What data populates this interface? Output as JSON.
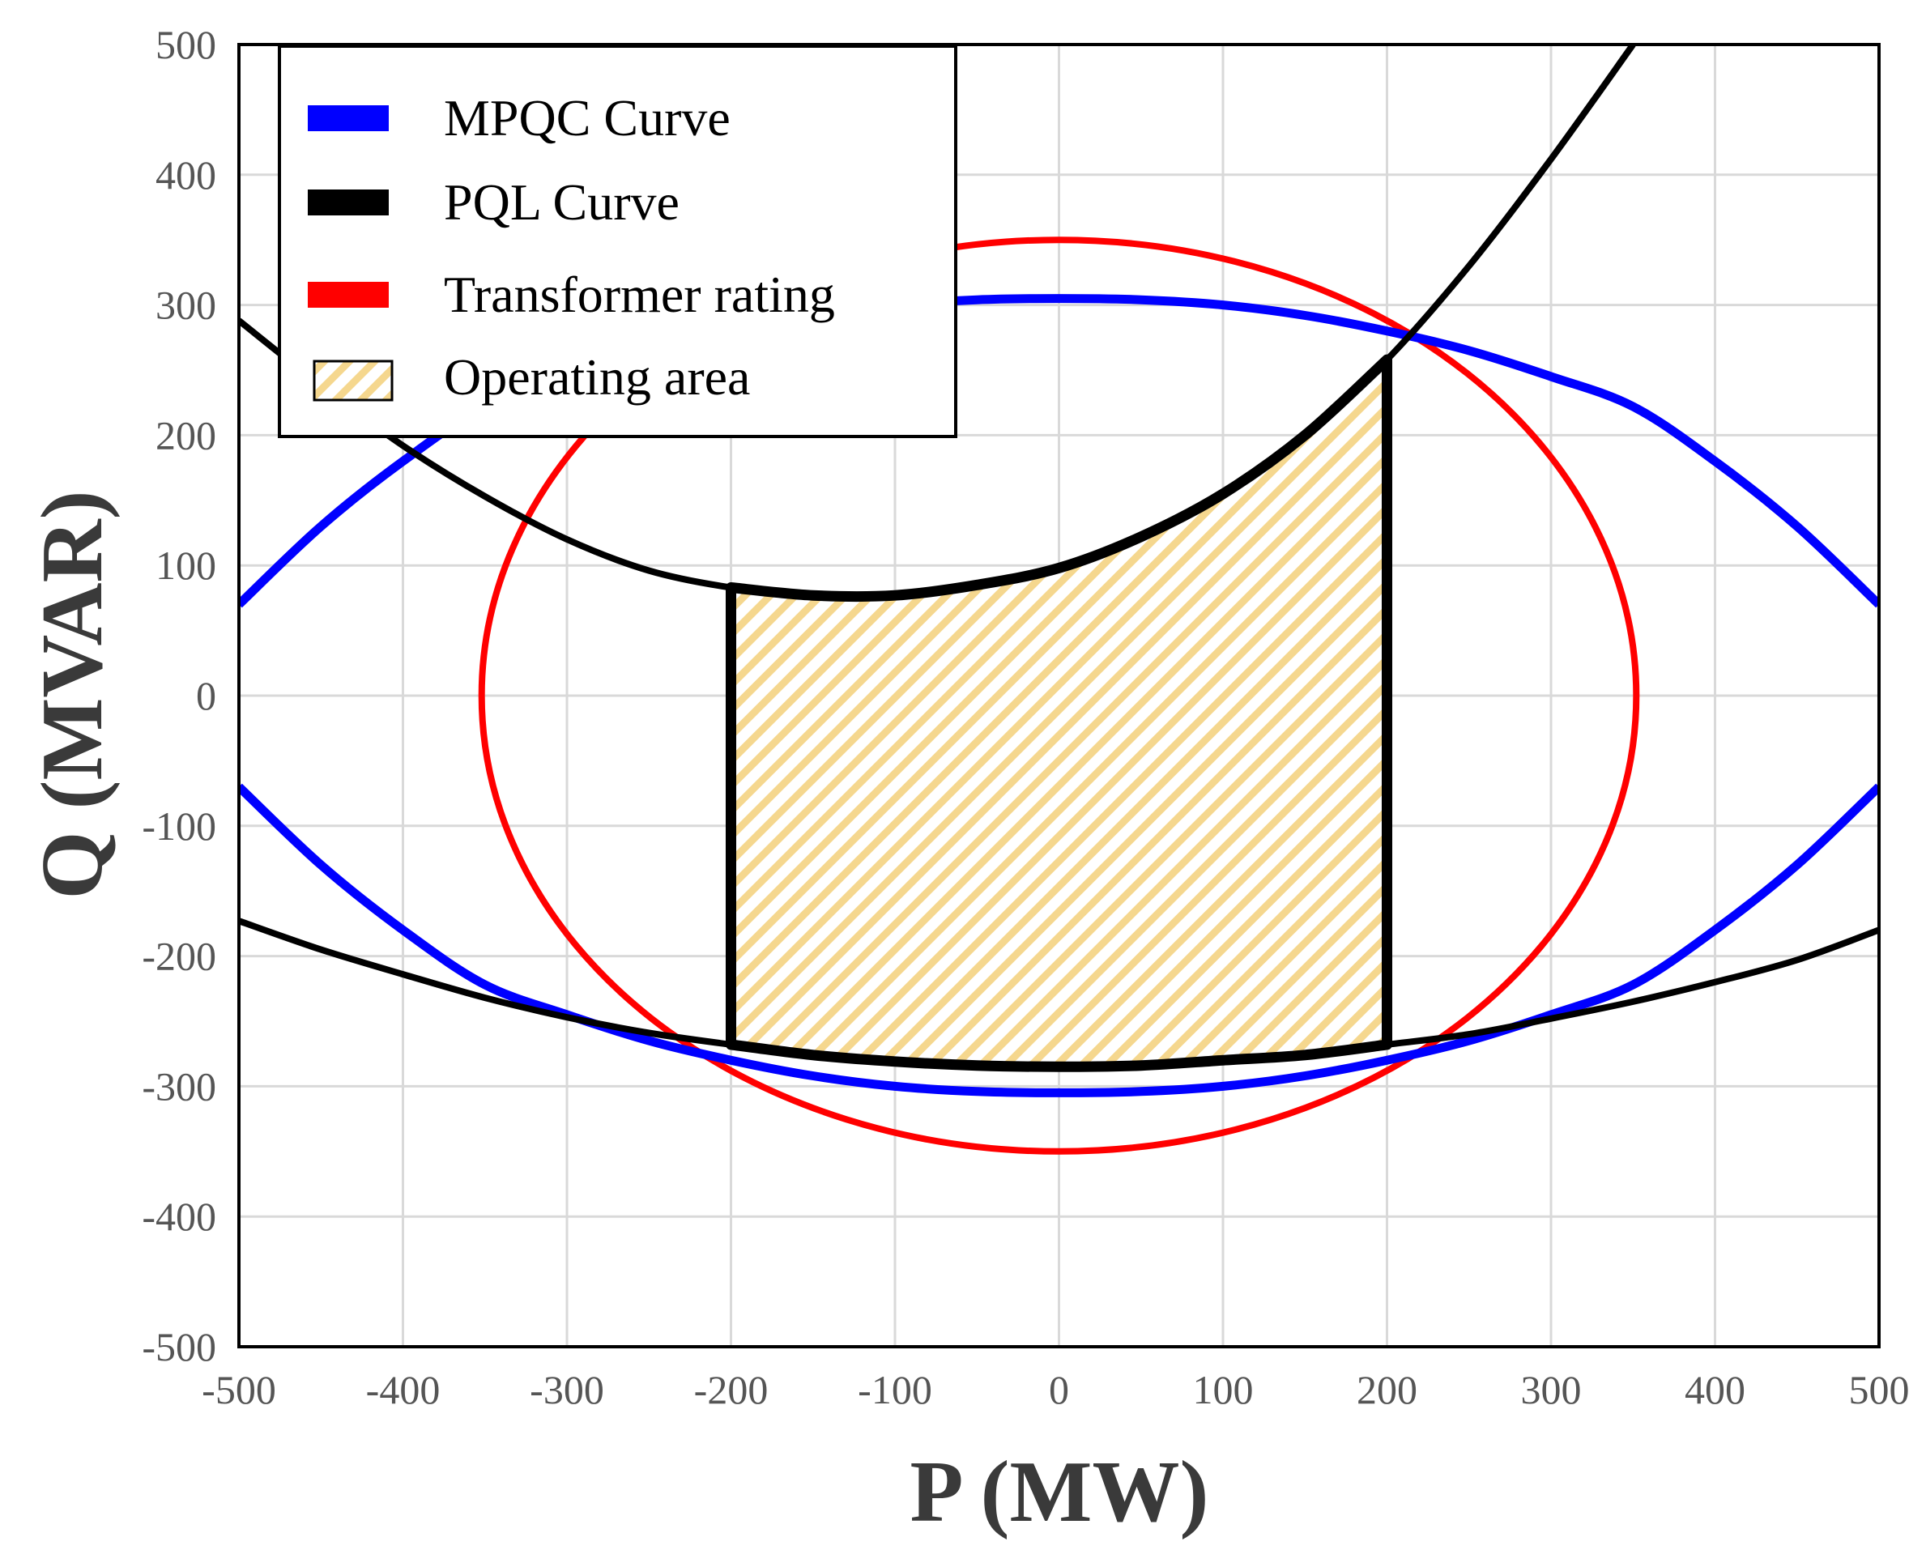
{
  "colors": {
    "mpqc": "#0000ff",
    "pql": "#000000",
    "transformer": "#ff0000",
    "operating_hatch": "#f5d78e",
    "grid": "#d9d9d9",
    "tick_text": "#555555"
  },
  "chart_data": {
    "type": "line",
    "title": "",
    "xlabel": "P (MW)",
    "ylabel": "Q (MVAR)",
    "xlim": [
      -500,
      500
    ],
    "ylim": [
      -500,
      500
    ],
    "x_ticks": [
      -500,
      -400,
      -300,
      -200,
      -100,
      0,
      100,
      200,
      300,
      400,
      500
    ],
    "y_ticks": [
      -500,
      -400,
      -300,
      -200,
      -100,
      0,
      100,
      200,
      300,
      400,
      500
    ],
    "x_tick_labels": [
      "-500",
      "-400",
      "-300",
      "-200",
      "-100",
      "0",
      "100",
      "200",
      "300",
      "400",
      "500"
    ],
    "y_tick_labels": [
      "-500",
      "-400",
      "-300",
      "-200",
      "-100",
      "0",
      "100",
      "200",
      "300",
      "400",
      "500"
    ],
    "grid": true,
    "legend_position": "top-left",
    "legend": [
      {
        "label": "MPQC Curve",
        "color": "#0000ff",
        "kind": "line"
      },
      {
        "label": "PQL Curve",
        "color": "#000000",
        "kind": "line"
      },
      {
        "label": "Transformer  rating",
        "color": "#ff0000",
        "kind": "line"
      },
      {
        "label": "Operating  area",
        "color": "#f5d78e",
        "kind": "hatch"
      }
    ],
    "series": [
      {
        "name": "MPQC Curve (upper)",
        "color": "#0000ff",
        "x": [
          -500,
          -450,
          -400,
          -350,
          -300,
          -250,
          -200,
          -150,
          -100,
          -50,
          0,
          50,
          100,
          150,
          200,
          250,
          300,
          350,
          400,
          450,
          500
        ],
        "y": [
          70,
          130,
          180,
          222,
          245,
          265,
          280,
          292,
          300,
          304,
          305,
          304,
          300,
          292,
          280,
          265,
          245,
          222,
          180,
          130,
          70
        ]
      },
      {
        "name": "MPQC Curve (lower)",
        "color": "#0000ff",
        "x": [
          -500,
          -450,
          -400,
          -350,
          -300,
          -250,
          -200,
          -150,
          -100,
          -50,
          0,
          50,
          100,
          150,
          200,
          250,
          300,
          350,
          400,
          450,
          500
        ],
        "y": [
          -70,
          -130,
          -180,
          -222,
          -245,
          -265,
          -280,
          -292,
          -300,
          -304,
          -305,
          -304,
          -300,
          -292,
          -280,
          -265,
          -245,
          -222,
          -180,
          -130,
          -70
        ]
      },
      {
        "name": "PQL Curve (upper)",
        "color": "#000000",
        "x": [
          -500,
          -450,
          -400,
          -350,
          -300,
          -250,
          -200,
          -150,
          -100,
          -50,
          0,
          50,
          100,
          150,
          200,
          250,
          300,
          350
        ],
        "y": [
          288,
          238,
          192,
          153,
          120,
          96,
          83,
          77,
          77,
          85,
          98,
          122,
          155,
          200,
          258,
          330,
          412,
          500
        ]
      },
      {
        "name": "PQL Curve (lower)",
        "color": "#000000",
        "x": [
          -500,
          -450,
          -400,
          -350,
          -300,
          -250,
          -200,
          -150,
          -100,
          -50,
          0,
          50,
          100,
          150,
          200,
          250,
          300,
          350,
          400,
          450,
          500
        ],
        "y": [
          -173,
          -195,
          -214,
          -232,
          -247,
          -259,
          -268,
          -276,
          -281,
          -284,
          -285,
          -284,
          -280,
          -276,
          -268,
          -260,
          -248,
          -235,
          -220,
          -203,
          -180
        ]
      },
      {
        "name": "Transformer  rating",
        "color": "#ff0000",
        "shape": "ellipse",
        "center": [
          0,
          0
        ],
        "radius_p": 352,
        "radius_q": 350
      }
    ],
    "operating_area": {
      "p_min": -200,
      "p_max": 200,
      "upper_boundary_x": [
        -200,
        -150,
        -100,
        -50,
        0,
        50,
        100,
        150,
        200
      ],
      "upper_boundary_y": [
        83,
        77,
        77,
        85,
        98,
        122,
        155,
        200,
        258
      ],
      "lower_boundary_x": [
        -200,
        -150,
        -100,
        -50,
        0,
        50,
        100,
        150,
        200
      ],
      "lower_boundary_y": [
        -268,
        -276,
        -281,
        -284,
        -285,
        -284,
        -280,
        -276,
        -268
      ]
    }
  }
}
